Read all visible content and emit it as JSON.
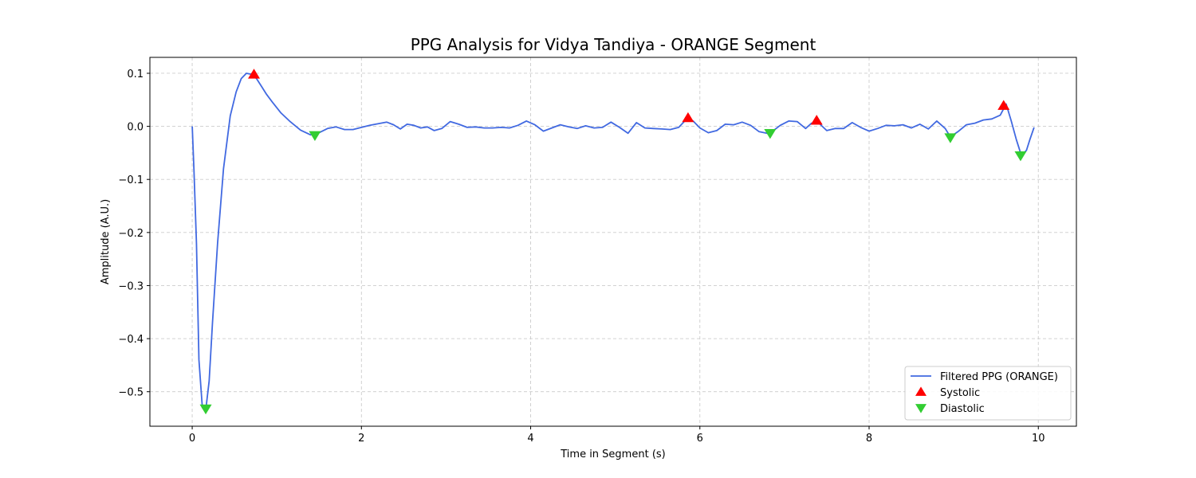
{
  "chart_data": {
    "type": "line",
    "title": "PPG Analysis for Vidya Tandiya - ORANGE Segment",
    "xlabel": "Time in Segment (s)",
    "ylabel": "Amplitude (A.U.)",
    "xlim": [
      -0.5,
      10.45
    ],
    "ylim": [
      -0.565,
      0.13
    ],
    "x_ticks": [
      0,
      2,
      4,
      6,
      8,
      10
    ],
    "x_tick_labels": [
      "0",
      "2",
      "4",
      "6",
      "8",
      "10"
    ],
    "y_ticks": [
      0.1,
      0.0,
      -0.1,
      -0.2,
      -0.3,
      -0.4,
      -0.5
    ],
    "y_tick_labels": [
      "0.1",
      "0.0",
      "−0.1",
      "−0.2",
      "−0.3",
      "−0.4",
      "−0.5"
    ],
    "grid": true,
    "legend_position": "lower right",
    "series": [
      {
        "name": "Filtered PPG (ORANGE)",
        "type": "line",
        "color": "#4169e1",
        "x": [
          0.0,
          0.02,
          0.05,
          0.08,
          0.12,
          0.16,
          0.2,
          0.24,
          0.3,
          0.37,
          0.45,
          0.52,
          0.58,
          0.64,
          0.7,
          0.76,
          0.82,
          0.88,
          0.95,
          1.05,
          1.15,
          1.28,
          1.4,
          1.5,
          1.6,
          1.7,
          1.8,
          1.9,
          2.0,
          2.1,
          2.2,
          2.3,
          2.38,
          2.46,
          2.54,
          2.62,
          2.7,
          2.78,
          2.86,
          2.95,
          3.05,
          3.15,
          3.25,
          3.35,
          3.45,
          3.55,
          3.65,
          3.75,
          3.85,
          3.95,
          4.05,
          4.15,
          4.25,
          4.35,
          4.45,
          4.55,
          4.65,
          4.75,
          4.85,
          4.95,
          5.05,
          5.15,
          5.25,
          5.35,
          5.45,
          5.55,
          5.65,
          5.75,
          5.85,
          5.92,
          6.0,
          6.1,
          6.2,
          6.3,
          6.4,
          6.5,
          6.6,
          6.7,
          6.82,
          6.95,
          7.05,
          7.15,
          7.25,
          7.32,
          7.4,
          7.5,
          7.6,
          7.7,
          7.8,
          7.9,
          8.0,
          8.1,
          8.2,
          8.3,
          8.4,
          8.5,
          8.6,
          8.7,
          8.8,
          8.9,
          8.96,
          9.05,
          9.15,
          9.25,
          9.35,
          9.45,
          9.55,
          9.62,
          9.68,
          9.74,
          9.8,
          9.86,
          9.9,
          9.95
        ],
        "y": [
          0.0,
          -0.08,
          -0.22,
          -0.44,
          -0.53,
          -0.535,
          -0.48,
          -0.37,
          -0.22,
          -0.08,
          0.02,
          0.065,
          0.09,
          0.1,
          0.098,
          0.09,
          0.075,
          0.06,
          0.045,
          0.025,
          0.01,
          -0.007,
          -0.016,
          -0.012,
          -0.004,
          -0.001,
          -0.006,
          -0.006,
          -0.002,
          0.002,
          0.005,
          0.008,
          0.003,
          -0.005,
          0.004,
          0.002,
          -0.003,
          -0.001,
          -0.008,
          -0.004,
          0.009,
          0.004,
          -0.002,
          -0.001,
          -0.003,
          -0.003,
          -0.002,
          -0.003,
          0.002,
          0.01,
          0.003,
          -0.009,
          -0.003,
          0.003,
          -0.001,
          -0.004,
          0.001,
          -0.003,
          -0.002,
          0.008,
          -0.002,
          -0.013,
          0.007,
          -0.003,
          -0.004,
          -0.005,
          -0.006,
          -0.002,
          0.015,
          0.01,
          -0.003,
          -0.012,
          -0.008,
          0.004,
          0.003,
          0.008,
          0.002,
          -0.01,
          -0.014,
          0.002,
          0.01,
          0.009,
          -0.004,
          0.006,
          0.007,
          -0.008,
          -0.004,
          -0.004,
          0.007,
          -0.002,
          -0.009,
          -0.004,
          0.002,
          0.001,
          0.003,
          -0.003,
          0.004,
          -0.005,
          0.01,
          -0.004,
          -0.02,
          -0.01,
          0.003,
          0.006,
          0.012,
          0.014,
          0.021,
          0.042,
          0.01,
          -0.025,
          -0.055,
          -0.045,
          -0.025,
          -0.002
        ]
      },
      {
        "name": "Systolic",
        "type": "scatter",
        "marker": "triangle-up",
        "color": "#ff0000",
        "x": [
          0.73,
          5.86,
          7.38,
          9.59
        ],
        "y": [
          0.098,
          0.016,
          0.011,
          0.039
        ]
      },
      {
        "name": "Diastolic",
        "type": "scatter",
        "marker": "triangle-down",
        "color": "#32cd32",
        "x": [
          0.16,
          1.45,
          6.83,
          8.96,
          9.79
        ],
        "y": [
          -0.532,
          -0.017,
          -0.013,
          -0.021,
          -0.055
        ]
      }
    ]
  }
}
